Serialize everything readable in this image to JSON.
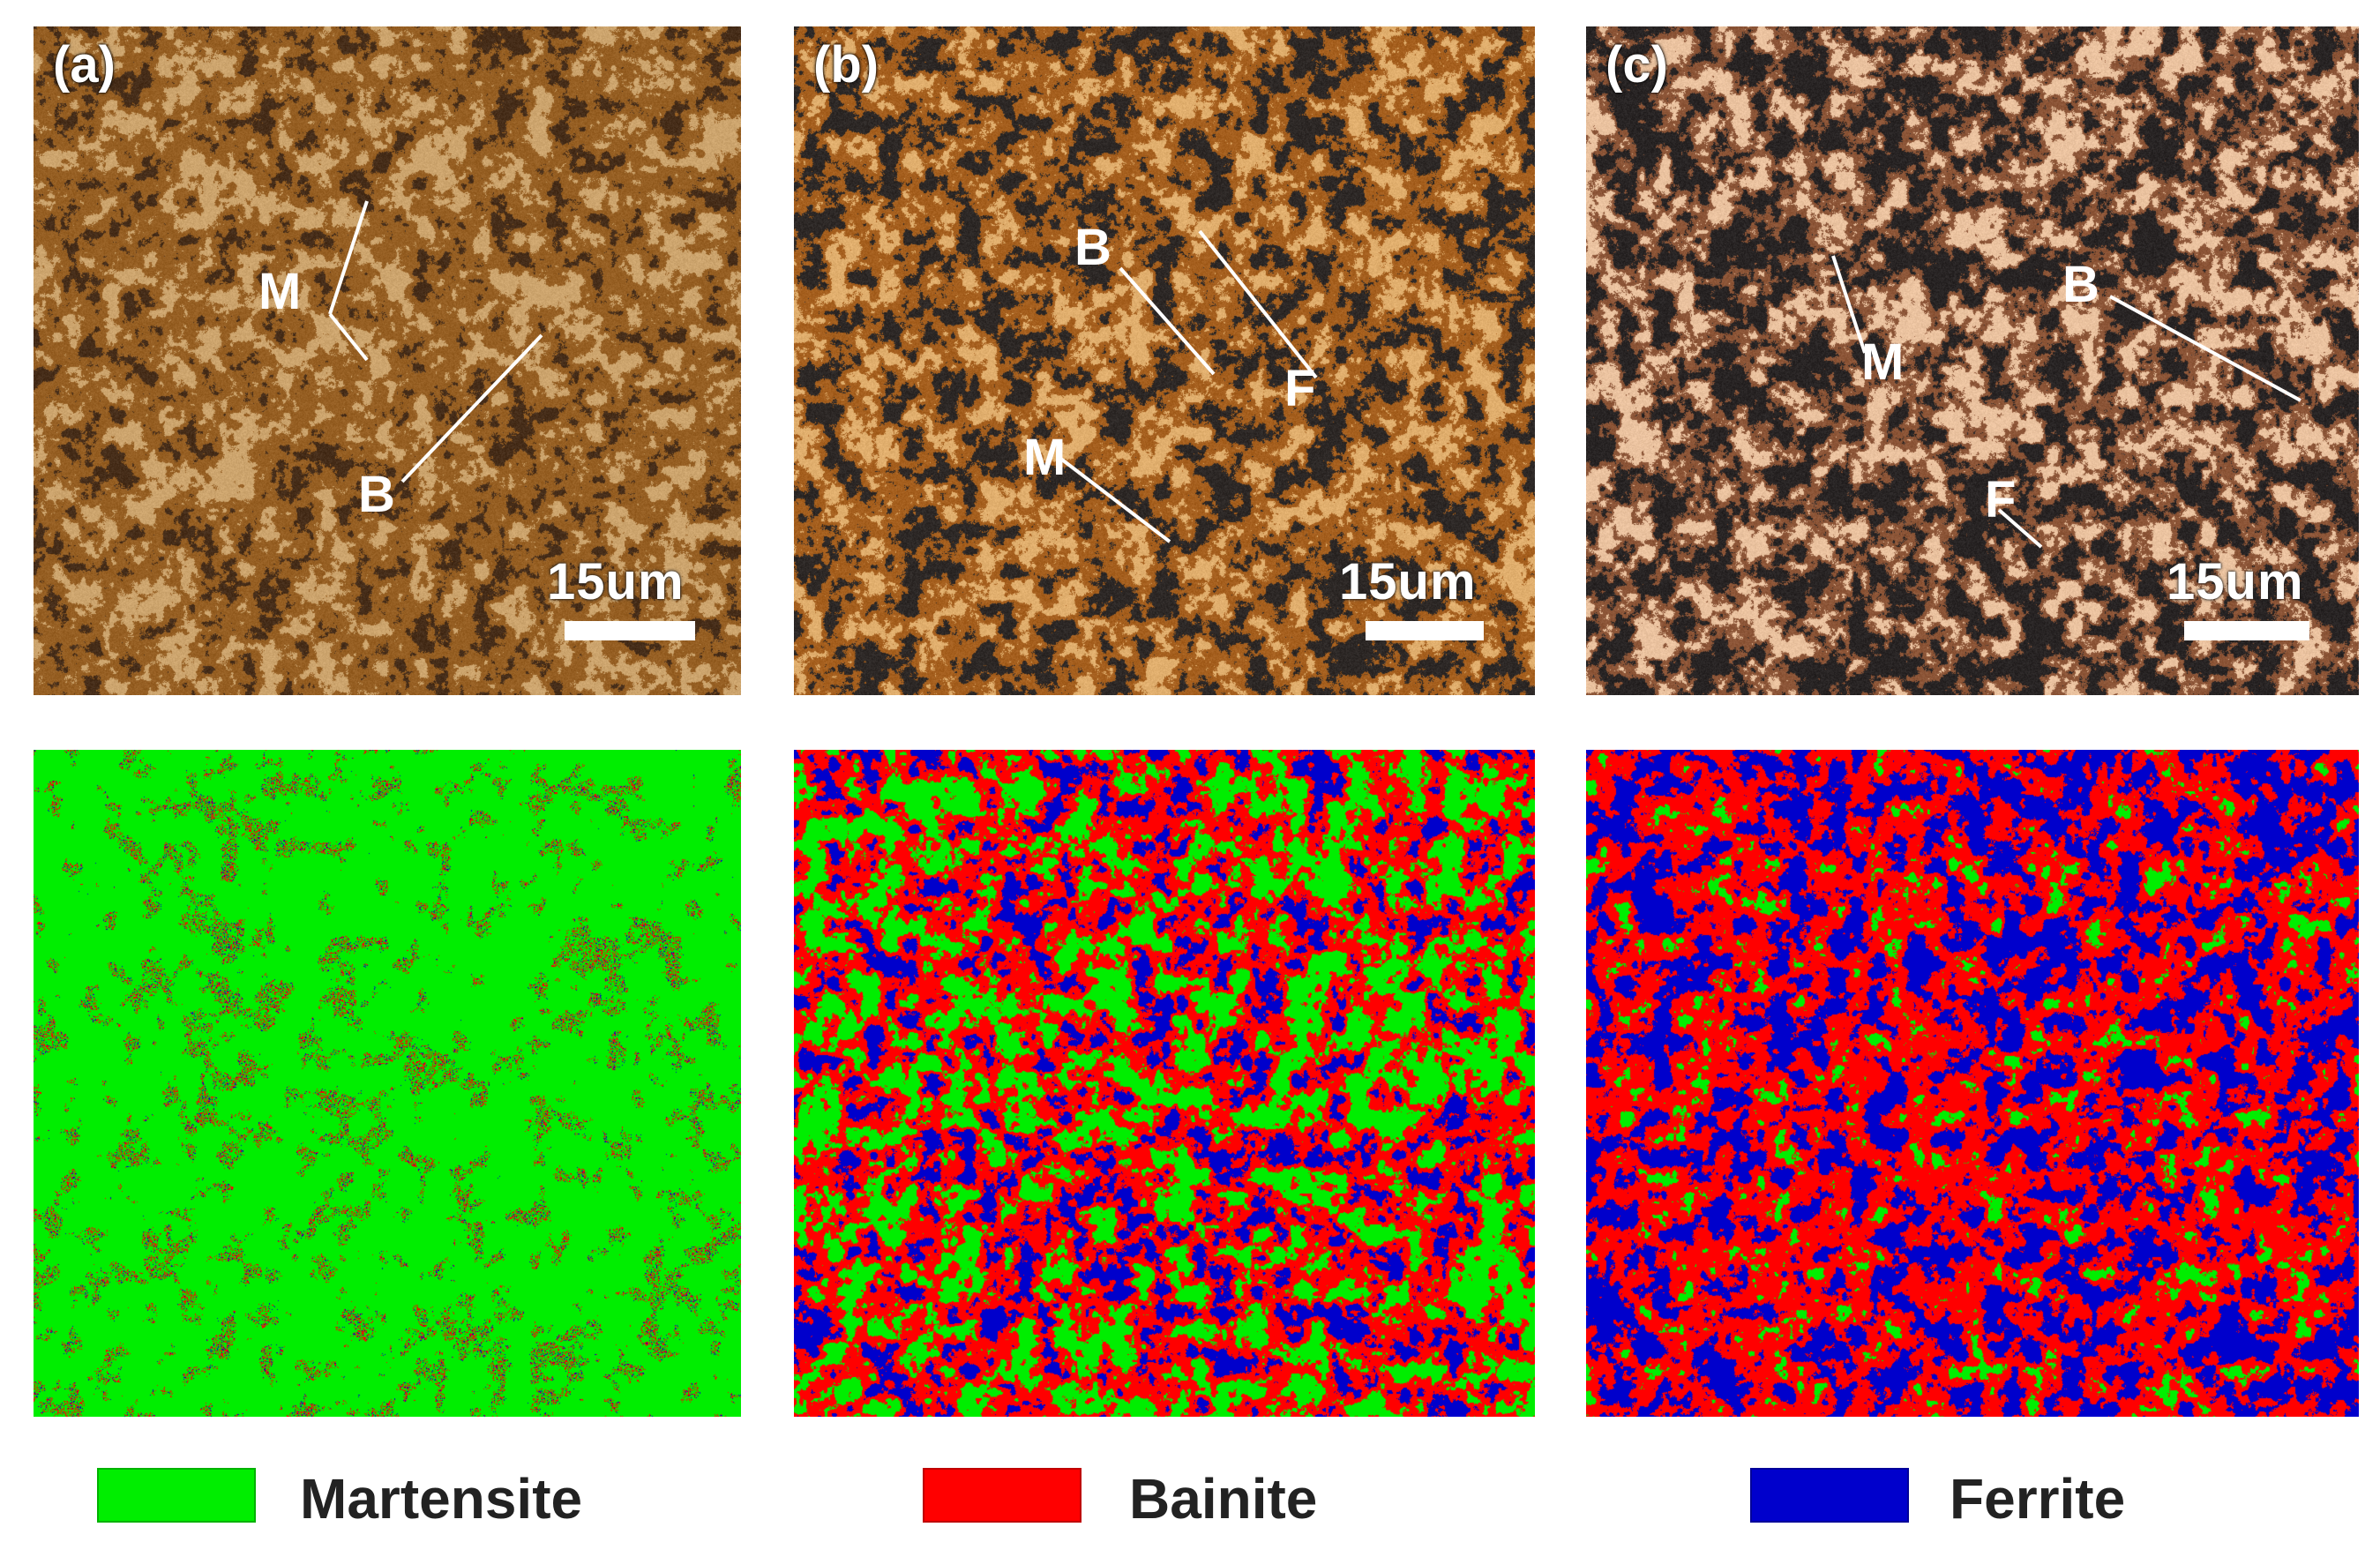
{
  "panels": [
    {
      "label": "(a)",
      "scale_text": "15um",
      "annotations": [
        "M",
        "B"
      ]
    },
    {
      "label": "(b)",
      "scale_text": "15um",
      "annotations": [
        "B",
        "F",
        "M"
      ]
    },
    {
      "label": "(c)",
      "scale_text": "15um",
      "annotations": [
        "M",
        "B",
        "F"
      ]
    }
  ],
  "maps": [
    {
      "phase_fractions": {
        "martensite": 0.8,
        "bainite": 0.15,
        "ferrite": 0.05
      }
    },
    {
      "phase_fractions": {
        "martensite": 0.45,
        "bainite": 0.4,
        "ferrite": 0.15
      }
    },
    {
      "phase_fractions": {
        "martensite": 0.15,
        "bainite": 0.5,
        "ferrite": 0.35
      }
    }
  ],
  "legend": [
    {
      "label": "Martensite",
      "color": "#00ee00"
    },
    {
      "label": "Bainite",
      "color": "#ff0000"
    },
    {
      "label": "Ferrite",
      "color": "#0000cc"
    }
  ]
}
